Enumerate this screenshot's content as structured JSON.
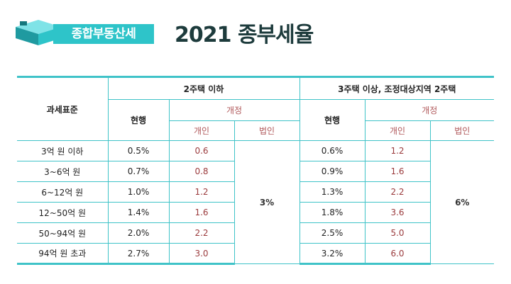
{
  "badge": {
    "label": "종합부동산세"
  },
  "title": "2021 종부세율",
  "table": {
    "row_header": "과세표준",
    "group1": "2주택 이하",
    "group2": "3주택 이상, 조정대상지역 2주택",
    "current": "현행",
    "revision": "개정",
    "individual": "개인",
    "corporate": "법인",
    "corp_rate_group1": "3%",
    "corp_rate_group2": "6%",
    "rows": [
      {
        "bracket": "3억 원 이하",
        "g1_current": "0.5%",
        "g1_indiv": "0.6",
        "g2_current": "0.6%",
        "g2_indiv": "1.2"
      },
      {
        "bracket": "3~6억 원",
        "g1_current": "0.7%",
        "g1_indiv": "0.8",
        "g2_current": "0.9%",
        "g2_indiv": "1.6"
      },
      {
        "bracket": "6~12억 원",
        "g1_current": "1.0%",
        "g1_indiv": "1.2",
        "g2_current": "1.3%",
        "g2_indiv": "2.2"
      },
      {
        "bracket": "12~50억 원",
        "g1_current": "1.4%",
        "g1_indiv": "1.6",
        "g2_current": "1.8%",
        "g2_indiv": "3.6"
      },
      {
        "bracket": "50~94억 원",
        "g1_current": "2.0%",
        "g1_indiv": "2.2",
        "g2_current": "2.5%",
        "g2_indiv": "5.0"
      },
      {
        "bracket": "94억 원 초과",
        "g1_current": "2.7%",
        "g1_indiv": "3.0",
        "g2_current": "3.2%",
        "g2_indiv": "6.0"
      }
    ]
  },
  "colors": {
    "accent": "#3fc3c8",
    "title": "#1d3b3c",
    "revised_value": "#9b3b3d"
  }
}
